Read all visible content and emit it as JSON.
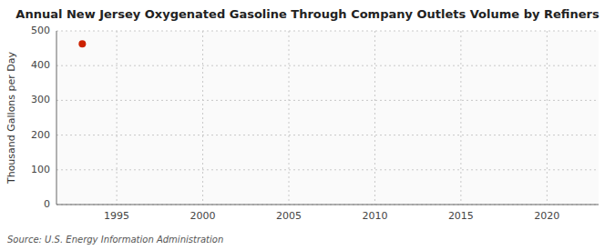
{
  "chart_data": {
    "type": "scatter",
    "title": "Annual New Jersey Oxygenated Gasoline Through Company Outlets Volume by Refiners",
    "y_label": "Thousand Gallons per Day",
    "annotations": [
      "Source: U.S. Energy Information Administration"
    ],
    "x": [
      1993
    ],
    "values": [
      463
    ],
    "color": "#cc2200",
    "marker": "circle",
    "xlim": [
      1991.5,
      2023
    ],
    "ylim": [
      0,
      500
    ],
    "xticks": [
      1995,
      2000,
      2005,
      2010,
      2015,
      2020
    ],
    "yticks": [
      0,
      100,
      200,
      300,
      400,
      500
    ],
    "grid": true
  }
}
